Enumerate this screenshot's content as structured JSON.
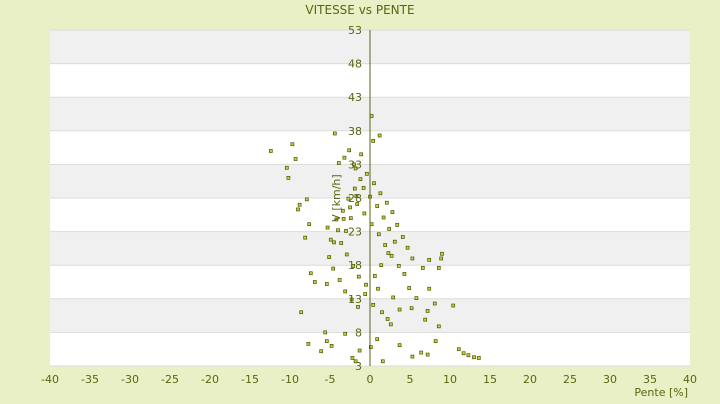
{
  "chart_data": {
    "type": "scatter",
    "title": "VITESSE vs PENTE",
    "xlabel": "Pente [%]",
    "ylabel": "V [km/h]",
    "xlim": [
      -40,
      40
    ],
    "ylim": [
      3,
      53
    ],
    "x_ticks": [
      "-40",
      "-35",
      "-30",
      "-25",
      "-20",
      "-15",
      "-10",
      "-5",
      "0",
      "5",
      "10",
      "15",
      "20",
      "25",
      "30",
      "35",
      "40"
    ],
    "y_ticks": [
      "3",
      "8",
      "13",
      "18",
      "23",
      "28",
      "33",
      "38",
      "43",
      "48",
      "53"
    ],
    "grid": true,
    "legend": "none",
    "colors": {
      "background": "#eaf0c6",
      "plot_band_light": "#ffffff",
      "plot_band_dark": "#f0f0f0",
      "axis_text": "#5a6410",
      "point_fill": "#c8d23c",
      "point_stroke": "#4a5200",
      "zero_axis": "#5a6410"
    },
    "series": [
      {
        "values": [
          [
            -12.4,
            35.0
          ],
          [
            -10.4,
            32.5
          ],
          [
            -9.7,
            36.0
          ],
          [
            -9.3,
            33.8
          ],
          [
            -10.2,
            31.0
          ],
          [
            -8.8,
            27.0
          ],
          [
            -7.6,
            24.1
          ],
          [
            -4.4,
            37.6
          ],
          [
            -2.6,
            35.1
          ],
          [
            -3.2,
            34.0
          ],
          [
            -3.9,
            33.2
          ],
          [
            -2.0,
            33.0
          ],
          [
            -1.8,
            32.4
          ],
          [
            0.2,
            40.2
          ],
          [
            1.2,
            37.3
          ],
          [
            0.4,
            36.5
          ],
          [
            -1.1,
            34.5
          ],
          [
            -7.9,
            27.8
          ],
          [
            -9.0,
            26.3
          ],
          [
            -8.1,
            22.1
          ],
          [
            -8.6,
            11.0
          ],
          [
            -5.4,
            15.2
          ],
          [
            -6.9,
            15.5
          ],
          [
            -7.4,
            16.8
          ],
          [
            -7.7,
            6.3
          ],
          [
            -5.4,
            6.7
          ],
          [
            -6.1,
            5.2
          ],
          [
            -5.6,
            8.0
          ],
          [
            -3.1,
            7.8
          ],
          [
            -4.8,
            6.0
          ],
          [
            -2.2,
            4.2
          ],
          [
            -1.8,
            3.7
          ],
          [
            -1.3,
            5.3
          ],
          [
            0.1,
            5.8
          ],
          [
            0.9,
            7.0
          ],
          [
            1.6,
            3.7
          ],
          [
            2.6,
            9.2
          ],
          [
            3.7,
            6.1
          ],
          [
            5.3,
            4.4
          ],
          [
            6.4,
            5.0
          ],
          [
            7.2,
            4.7
          ],
          [
            8.6,
            8.9
          ],
          [
            8.2,
            6.7
          ],
          [
            10.4,
            12.0
          ],
          [
            11.1,
            5.5
          ],
          [
            11.7,
            4.9
          ],
          [
            12.3,
            4.6
          ],
          [
            13.0,
            4.3
          ],
          [
            13.6,
            4.2
          ],
          [
            8.6,
            17.6
          ],
          [
            9.0,
            19.7
          ],
          [
            8.9,
            19.0
          ],
          [
            7.4,
            18.8
          ],
          [
            6.6,
            17.6
          ],
          [
            7.4,
            14.5
          ],
          [
            8.1,
            12.3
          ],
          [
            6.9,
            9.9
          ],
          [
            7.2,
            11.2
          ],
          [
            5.2,
            11.6
          ],
          [
            5.8,
            13.1
          ],
          [
            4.3,
            16.7
          ],
          [
            4.9,
            14.6
          ],
          [
            2.9,
            13.2
          ],
          [
            3.7,
            11.4
          ],
          [
            1.5,
            11.0
          ],
          [
            2.2,
            10.0
          ],
          [
            0.4,
            12.1
          ],
          [
            1.0,
            14.5
          ],
          [
            -0.6,
            13.7
          ],
          [
            -1.5,
            11.8
          ],
          [
            -2.3,
            12.9
          ],
          [
            -3.1,
            14.1
          ],
          [
            -3.8,
            15.8
          ],
          [
            -4.6,
            17.5
          ],
          [
            -5.1,
            19.2
          ],
          [
            -4.9,
            21.8
          ],
          [
            -5.3,
            23.6
          ],
          [
            -4.2,
            24.8
          ],
          [
            -3.4,
            26.1
          ],
          [
            -2.7,
            27.9
          ],
          [
            -1.9,
            29.4
          ],
          [
            -1.2,
            30.8
          ],
          [
            -0.4,
            31.6
          ],
          [
            0.5,
            30.2
          ],
          [
            1.3,
            28.7
          ],
          [
            2.1,
            27.3
          ],
          [
            2.8,
            25.9
          ],
          [
            3.4,
            24.0
          ],
          [
            4.1,
            22.2
          ],
          [
            4.7,
            20.6
          ],
          [
            5.3,
            19.0
          ],
          [
            3.6,
            17.9
          ],
          [
            2.7,
            19.4
          ],
          [
            1.9,
            21.0
          ],
          [
            1.1,
            22.6
          ],
          [
            0.2,
            24.1
          ],
          [
            -0.7,
            25.7
          ],
          [
            -1.6,
            27.1
          ],
          [
            -2.4,
            25.0
          ],
          [
            -3.0,
            23.1
          ],
          [
            -3.6,
            21.3
          ],
          [
            -2.9,
            19.6
          ],
          [
            -2.1,
            17.9
          ],
          [
            -1.4,
            16.3
          ],
          [
            -0.5,
            15.1
          ],
          [
            0.6,
            16.4
          ],
          [
            1.4,
            18.0
          ],
          [
            2.3,
            19.8
          ],
          [
            3.1,
            21.5
          ],
          [
            2.4,
            23.4
          ],
          [
            1.7,
            25.1
          ],
          [
            0.9,
            26.8
          ],
          [
            0.0,
            28.2
          ],
          [
            -0.8,
            29.5
          ],
          [
            -1.7,
            28.3
          ],
          [
            -2.5,
            26.6
          ],
          [
            -3.3,
            24.9
          ],
          [
            -4.0,
            23.2
          ],
          [
            -4.5,
            21.4
          ]
        ]
      }
    ]
  }
}
